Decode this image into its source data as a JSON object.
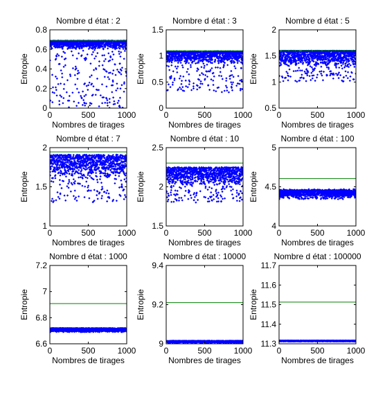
{
  "figure": {
    "background": "#ffffff",
    "axes_color": "#000000",
    "marker_color": "#0000ff",
    "reference_line_color": "#008000"
  },
  "chart_data": [
    {
      "type": "scatter",
      "title": "Nombre d état : 2",
      "xlabel": "Nombres de tirages",
      "ylabel": "Entropie",
      "xlim": [
        0,
        1000
      ],
      "ylim": [
        0,
        0.8
      ],
      "xticks": [
        "0",
        "500",
        "1000"
      ],
      "yticks": [
        "0",
        "0.2",
        "0.4",
        "0.6",
        "0.8"
      ],
      "reference_line": 0.693,
      "series": [
        {
          "n_points": 1000,
          "y_max": 0.69,
          "y_range": [
            0,
            0.69
          ],
          "concentrated_band": [
            0.6,
            0.69
          ]
        }
      ]
    },
    {
      "type": "scatter",
      "title": "Nombre d état : 3",
      "xlabel": "Nombres de tirages",
      "ylabel": "Entropie",
      "xlim": [
        0,
        1000
      ],
      "ylim": [
        0,
        1.5
      ],
      "xticks": [
        "0",
        "500",
        "1000"
      ],
      "yticks": [
        "0",
        "0.5",
        "1",
        "1.5"
      ],
      "reference_line": 1.099,
      "series": [
        {
          "n_points": 1000,
          "y_max": 1.09,
          "y_range": [
            0.3,
            1.09
          ],
          "concentrated_band": [
            0.85,
            1.09
          ]
        }
      ]
    },
    {
      "type": "scatter",
      "title": "Nombre d état : 5",
      "xlabel": "Nombres de tirages",
      "ylabel": "Entropie",
      "xlim": [
        0,
        1000
      ],
      "ylim": [
        0.5,
        2
      ],
      "xticks": [
        "0",
        "500",
        "1000"
      ],
      "yticks": [
        "0.5",
        "1",
        "1.5",
        "2"
      ],
      "reference_line": 1.609,
      "series": [
        {
          "n_points": 1000,
          "y_max": 1.6,
          "y_range": [
            1.0,
            1.6
          ],
          "concentrated_band": [
            1.3,
            1.6
          ]
        }
      ]
    },
    {
      "type": "scatter",
      "title": "Nombre d état : 7",
      "xlabel": "Nombres de tirages",
      "ylabel": "Entropie",
      "xlim": [
        0,
        1000
      ],
      "ylim": [
        1,
        2
      ],
      "xticks": [
        "0",
        "500",
        "1000"
      ],
      "yticks": [
        "1",
        "1.5",
        "2"
      ],
      "reference_line": 1.946,
      "series": [
        {
          "n_points": 1000,
          "y_max": 1.91,
          "y_range": [
            1.3,
            1.91
          ],
          "concentrated_band": [
            1.6,
            1.91
          ]
        }
      ]
    },
    {
      "type": "scatter",
      "title": "Nombre d état : 10",
      "xlabel": "Nombres de tirages",
      "ylabel": "Entropie",
      "xlim": [
        0,
        1000
      ],
      "ylim": [
        1.5,
        2.5
      ],
      "xticks": [
        "0",
        "500",
        "1000"
      ],
      "yticks": [
        "1.5",
        "2",
        "2.5"
      ],
      "reference_line": 2.303,
      "series": [
        {
          "n_points": 1000,
          "y_max": 2.25,
          "y_range": [
            1.8,
            2.25
          ],
          "concentrated_band": [
            2.0,
            2.25
          ]
        }
      ]
    },
    {
      "type": "scatter",
      "title": "Nombre d état : 100",
      "xlabel": "Nombres de tirages",
      "ylabel": "Entropie",
      "xlim": [
        0,
        1000
      ],
      "ylim": [
        4,
        5
      ],
      "xticks": [
        "0",
        "500",
        "1000"
      ],
      "yticks": [
        "4",
        "4.5",
        "5"
      ],
      "reference_line": 4.605,
      "series": [
        {
          "n_points": 1000,
          "y_max": 4.47,
          "y_range": [
            4.34,
            4.47
          ],
          "concentrated_band": [
            4.36,
            4.46
          ]
        }
      ]
    },
    {
      "type": "scatter",
      "title": "Nombre d état : 1000",
      "xlabel": "Nombres de tirages",
      "ylabel": "Entropie",
      "xlim": [
        0,
        1000
      ],
      "ylim": [
        6.6,
        7.2
      ],
      "xticks": [
        "0",
        "500",
        "1000"
      ],
      "yticks": [
        "6.6",
        "6.8",
        "7",
        "7.2"
      ],
      "reference_line": 6.908,
      "series": [
        {
          "n_points": 1000,
          "y_max": 6.72,
          "y_range": [
            6.69,
            6.72
          ],
          "concentrated_band": [
            6.69,
            6.72
          ]
        }
      ]
    },
    {
      "type": "scatter",
      "title": "Nombre d état : 10000",
      "xlabel": "Nombres de tirages",
      "ylabel": "Entropie",
      "xlim": [
        0,
        1000
      ],
      "ylim": [
        9,
        9.4
      ],
      "xticks": [
        "0",
        "500",
        "1000"
      ],
      "yticks": [
        "9",
        "9.2",
        "9.4"
      ],
      "reference_line": 9.21,
      "series": [
        {
          "n_points": 1000,
          "y_max": 9.015,
          "y_range": [
            9.005,
            9.015
          ],
          "concentrated_band": [
            9.005,
            9.015
          ]
        }
      ]
    },
    {
      "type": "scatter",
      "title": "Nombre d état : 100000",
      "xlabel": "Nombres de tirages",
      "ylabel": "Entropie",
      "xlim": [
        0,
        1000
      ],
      "ylim": [
        11.3,
        11.7
      ],
      "xticks": [
        "0",
        "500",
        "1000"
      ],
      "yticks": [
        "11.3",
        "11.4",
        "11.5",
        "11.6",
        "11.7"
      ],
      "reference_line": 11.513,
      "series": [
        {
          "n_points": 1000,
          "y_max": 11.316,
          "y_range": [
            11.312,
            11.316
          ],
          "concentrated_band": [
            11.312,
            11.316
          ]
        }
      ]
    }
  ]
}
